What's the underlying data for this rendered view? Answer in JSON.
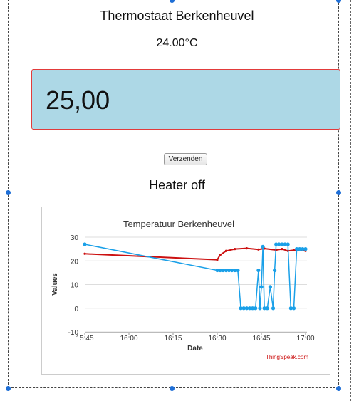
{
  "page": {
    "title": "Thermostaat Berkenheuvel",
    "current_temp": "24.00°C",
    "setpoint_value": "25,00",
    "submit_label": "Verzenden",
    "heater_status": "Heater off"
  },
  "chart_data": {
    "type": "line",
    "title": "Temperatuur Berkenheuvel",
    "xlabel": "Date",
    "ylabel": "Values",
    "x_ticks": [
      "15:45",
      "16:00",
      "16:15",
      "16:30",
      "16:45",
      "17:00"
    ],
    "y_ticks": [
      30,
      20,
      10,
      0,
      -10
    ],
    "ylim": [
      -10,
      30
    ],
    "xlim": [
      "15:45",
      "17:00"
    ],
    "grid": true,
    "credit": "ThingSpeak.com",
    "colors": {
      "red": "#cc1111",
      "blue": "#1aa0e8"
    },
    "series": [
      {
        "color": "red",
        "markers": false,
        "points": [
          [
            "15:45",
            23
          ],
          [
            "16:30",
            20.5
          ],
          [
            "16:31",
            22.5
          ],
          [
            "16:33",
            24.2
          ],
          [
            "16:36",
            25
          ],
          [
            "16:40",
            25.3
          ],
          [
            "16:44",
            24.8
          ],
          [
            "16:46",
            25.2
          ],
          [
            "16:50",
            24.6
          ],
          [
            "16:52",
            25
          ],
          [
            "16:54",
            24.2
          ],
          [
            "16:56",
            24.5
          ],
          [
            "16:58",
            24.6
          ],
          [
            "17:00",
            24.2
          ]
        ]
      },
      {
        "color": "blue",
        "markers": true,
        "points": [
          [
            "15:45",
            27
          ],
          [
            "16:30",
            16
          ],
          [
            "16:31",
            16
          ],
          [
            "16:32",
            16
          ],
          [
            "16:33",
            16
          ],
          [
            "16:34",
            16
          ],
          [
            "16:35",
            16
          ],
          [
            "16:36",
            16
          ],
          [
            "16:37",
            16
          ],
          [
            "16:38",
            0
          ],
          [
            "16:39",
            0
          ],
          [
            "16:40",
            0
          ],
          [
            "16:41",
            0
          ],
          [
            "16:42",
            0
          ],
          [
            "16:43",
            0
          ],
          [
            "16:44",
            16
          ],
          [
            "16:44.5",
            0
          ],
          [
            "16:45",
            9
          ],
          [
            "16:45.5",
            26
          ],
          [
            "16:46",
            0
          ],
          [
            "16:47",
            0
          ],
          [
            "16:48",
            9
          ],
          [
            "16:49",
            0
          ],
          [
            "16:49.5",
            16
          ],
          [
            "16:50",
            27
          ],
          [
            "16:51",
            27
          ],
          [
            "16:52",
            27
          ],
          [
            "16:53",
            27
          ],
          [
            "16:54",
            27
          ],
          [
            "16:55",
            0
          ],
          [
            "16:56",
            0
          ],
          [
            "16:57",
            25
          ],
          [
            "16:58",
            25
          ],
          [
            "16:59",
            25
          ],
          [
            "17:00",
            25
          ]
        ]
      }
    ]
  }
}
